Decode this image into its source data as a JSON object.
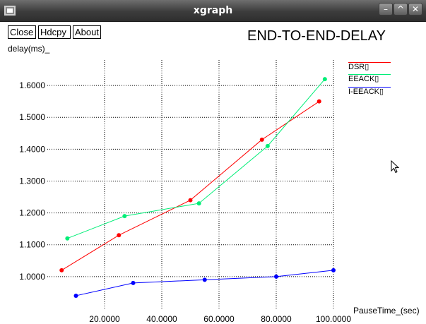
{
  "window": {
    "title": "xgraph",
    "minimize_label": "–",
    "maximize_label": "^",
    "close_label": "✕",
    "menu_icon": "window-menu-icon"
  },
  "toolbar": {
    "close_label": "Close",
    "hdcpy_label": "Hdcpy",
    "about_label": "About"
  },
  "chart_data": {
    "type": "line",
    "title": "END-TO-END-DELAY",
    "xlabel": "PauseTime_(sec)",
    "ylabel": "delay(ms)_",
    "xlim": [
      0,
      100
    ],
    "ylim": [
      0.9,
      1.68
    ],
    "x_ticks": [
      20,
      40,
      60,
      80,
      100
    ],
    "x_tick_labels": [
      "20.0000",
      "40.0000",
      "60.0000",
      "80.0000",
      "100.0000"
    ],
    "y_ticks": [
      1.0,
      1.1,
      1.2,
      1.3,
      1.4,
      1.5,
      1.6
    ],
    "y_tick_labels": [
      "1.0000",
      "1.1000",
      "1.2000",
      "1.3000",
      "1.4000",
      "1.5000",
      "1.6000"
    ],
    "grid": true,
    "legend_position": "top-right",
    "series": [
      {
        "name": "DSR▯",
        "color": "#ff0000",
        "points": [
          [
            5,
            1.02
          ],
          [
            25,
            1.13
          ],
          [
            50,
            1.24
          ],
          [
            75,
            1.43
          ],
          [
            95,
            1.55
          ]
        ]
      },
      {
        "name": "EEACK▯",
        "color": "#00ee77",
        "points": [
          [
            7,
            1.12
          ],
          [
            27,
            1.19
          ],
          [
            53,
            1.23
          ],
          [
            77,
            1.41
          ],
          [
            97,
            1.62
          ]
        ]
      },
      {
        "name": "I-EEACK▯",
        "color": "#0000ff",
        "points": [
          [
            10,
            0.94
          ],
          [
            30,
            0.98
          ],
          [
            55,
            0.99
          ],
          [
            80,
            1.0
          ],
          [
            100,
            1.02
          ]
        ]
      }
    ]
  }
}
